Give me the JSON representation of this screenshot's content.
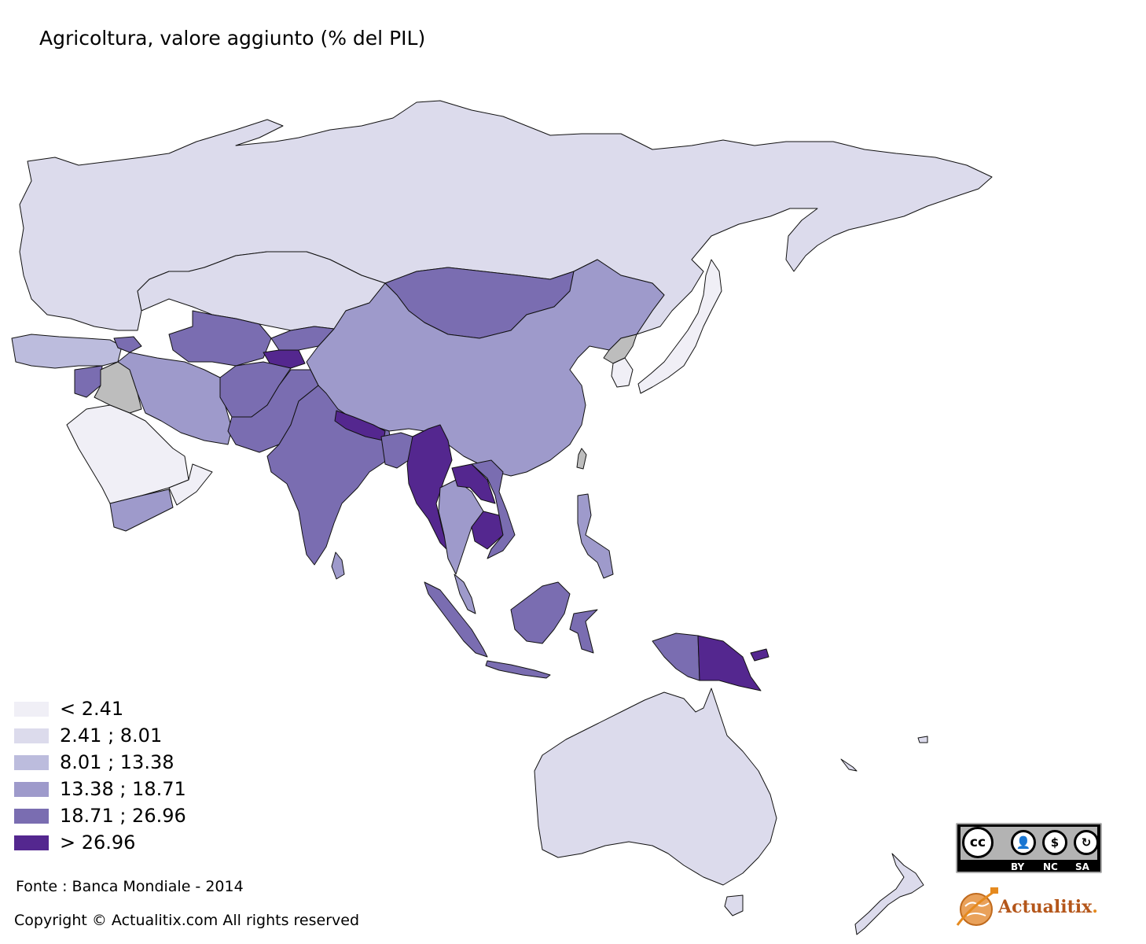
{
  "title": "Agricoltura, valore aggiunto (% del PIL)",
  "legend": [
    {
      "label": "< 2.41",
      "color": "#f0eff6"
    },
    {
      "label": "2.41 ; 8.01",
      "color": "#dcdbec"
    },
    {
      "label": "8.01 ; 13.38",
      "color": "#bcbcdd"
    },
    {
      "label": "13.38 ; 18.71",
      "color": "#9e9acb"
    },
    {
      "label": "18.71 ; 26.96",
      "color": "#7a6db1"
    },
    {
      "label": "> 26.96",
      "color": "#54278f"
    }
  ],
  "no_data_color": "#bdbdbd",
  "source": "Fonte : Banca Mondiale - 2014",
  "copyright": "Copyright © Actualitix.com All rights reserved",
  "license_badge": {
    "main": "cc",
    "tags": [
      "BY",
      "NC",
      "SA"
    ]
  },
  "brand": {
    "name": "Actualitix",
    "dot": "."
  }
}
